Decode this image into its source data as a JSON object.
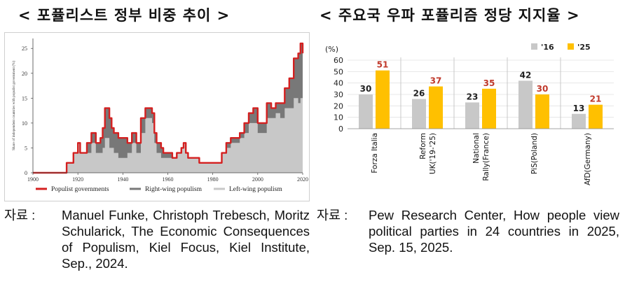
{
  "titles": {
    "left": "< 포퓰리스트 정부 비중 추이 >",
    "right": "< 주요국 우파 포퓰리즘 정당 지지율 >"
  },
  "sources": {
    "label": "자료 :",
    "left": "Manuel Funke, Christoph Trebesch, Moritz Schularick, The Economic Consequences of Populism, Kiel Focus, Kiel Institute, Sep., 2024.",
    "right": "Pew Research Center, How people view political parties in 24 countries in 2025, Sep. 15, 2025."
  },
  "chart_data": [
    {
      "type": "area",
      "ylabel": "Share of independent countries with populist government (%)",
      "xlim": [
        1900,
        2020
      ],
      "ylim": [
        0,
        27
      ],
      "xticks": [
        1900,
        1920,
        1940,
        1960,
        1980,
        2000,
        2020
      ],
      "yticks": [
        0,
        5,
        10,
        15,
        20,
        25
      ],
      "grid": false,
      "legend_position": "bottom",
      "x": [
        1900,
        1910,
        1914,
        1915,
        1917,
        1918,
        1919,
        1920,
        1921,
        1922,
        1923,
        1924,
        1926,
        1928,
        1929,
        1930,
        1931,
        1932,
        1933,
        1934,
        1935,
        1936,
        1937,
        1938,
        1940,
        1942,
        1944,
        1946,
        1948,
        1950,
        1952,
        1953,
        1954,
        1955,
        1956,
        1957,
        1958,
        1960,
        1962,
        1964,
        1966,
        1967,
        1968,
        1969,
        1970,
        1972,
        1974,
        1976,
        1978,
        1980,
        1982,
        1984,
        1986,
        1988,
        1990,
        1992,
        1994,
        1996,
        1998,
        2000,
        2002,
        2004,
        2006,
        2008,
        2010,
        2012,
        2014,
        2016,
        2018,
        2019,
        2020
      ],
      "series": [
        {
          "name": "Populist governments",
          "values": [
            0,
            0,
            0,
            2,
            2,
            4,
            4,
            6,
            4,
            4,
            4,
            6,
            8,
            6,
            6,
            7,
            9,
            13,
            13,
            11,
            9,
            8,
            8,
            7,
            7,
            6,
            8,
            6,
            11,
            13,
            13,
            12,
            8,
            6,
            6,
            5,
            4,
            4,
            3,
            4,
            5,
            6,
            4,
            3,
            3,
            3,
            2,
            2,
            2,
            2,
            2,
            4,
            6,
            7,
            7,
            8,
            10,
            12,
            13,
            10,
            10,
            14,
            13,
            14,
            14,
            17,
            19,
            23,
            24,
            26,
            24
          ]
        },
        {
          "name": "Right-wing populism",
          "values": [
            0,
            0,
            0,
            0,
            0,
            0,
            0,
            0,
            0,
            0,
            0,
            2,
            2,
            2,
            2,
            3,
            4,
            6,
            6,
            6,
            4,
            4,
            4,
            4,
            4,
            2,
            2,
            2,
            3,
            2,
            2,
            2,
            2,
            2,
            2,
            2,
            1,
            1,
            0,
            0,
            0,
            0,
            0,
            0,
            0,
            0,
            0,
            0,
            0,
            0,
            0,
            0,
            0,
            1,
            1,
            1,
            2,
            2,
            3,
            2,
            2,
            3,
            2,
            2,
            3,
            4,
            6,
            8,
            10,
            11,
            11
          ]
        },
        {
          "name": "Left-wing populism",
          "values": [
            0,
            0,
            0,
            2,
            2,
            4,
            4,
            6,
            4,
            4,
            4,
            4,
            6,
            4,
            4,
            4,
            5,
            7,
            7,
            5,
            5,
            4,
            4,
            3,
            3,
            4,
            6,
            4,
            8,
            11,
            11,
            10,
            6,
            4,
            4,
            3,
            3,
            3,
            3,
            4,
            5,
            6,
            4,
            3,
            3,
            3,
            2,
            2,
            2,
            2,
            2,
            4,
            5,
            6,
            6,
            7,
            8,
            10,
            10,
            8,
            8,
            11,
            11,
            12,
            11,
            13,
            13,
            15,
            14,
            15,
            13
          ]
        }
      ],
      "colors": {
        "Populist governments": "#d42020",
        "Right-wing populism": "#787878",
        "Left-wing populism": "#c8c8c8"
      }
    },
    {
      "type": "bar",
      "ylabel": "(%)",
      "ylim": [
        0,
        60
      ],
      "yticks": [
        0,
        10,
        20,
        30,
        40,
        50,
        60
      ],
      "grid": true,
      "legend_position": "top-right",
      "categories": [
        "Forza Italia",
        "Reform UK('19-'25)",
        "National Rally(France)",
        "PiS(Poland)",
        "AfD(Germany)"
      ],
      "category_lines": [
        [
          "Forza Italia"
        ],
        [
          "Reform",
          "UK('19-'25)"
        ],
        [
          "National",
          "Rally(France)"
        ],
        [
          "PiS(Poland)"
        ],
        [
          "AfD(Germany)"
        ]
      ],
      "series": [
        {
          "name": "'16",
          "values": [
            30,
            26,
            23,
            42,
            13
          ],
          "color": "#c8c8c8",
          "label_color": "#222222"
        },
        {
          "name": "'25",
          "values": [
            51,
            37,
            35,
            30,
            21
          ],
          "color": "#ffc000",
          "label_color": "#c0392b"
        }
      ]
    }
  ]
}
